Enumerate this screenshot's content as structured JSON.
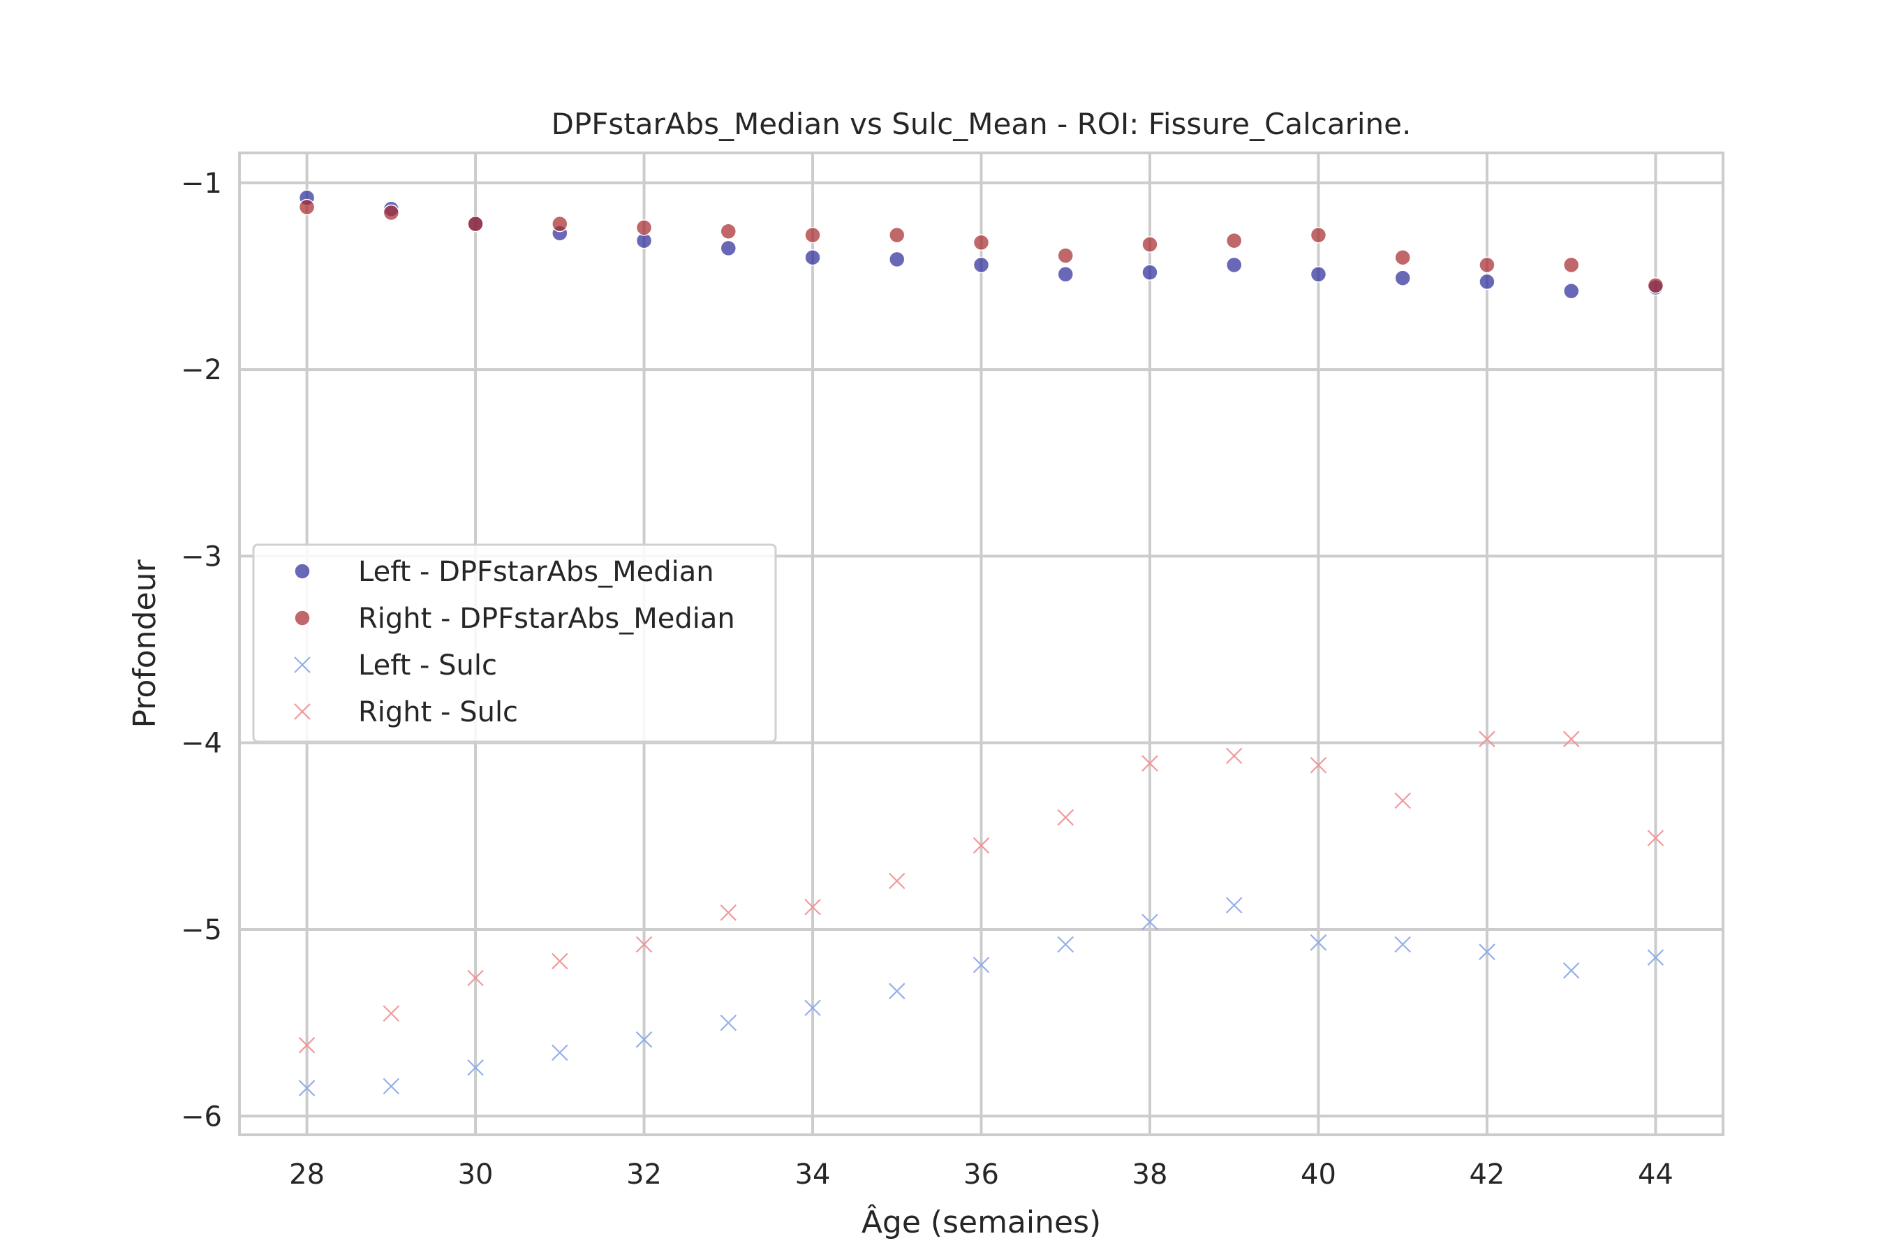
{
  "chart_data": {
    "type": "scatter",
    "title": "DPFstarAbs_Median vs Sulc_Mean - ROI: Fissure_Calcarine.",
    "xlabel": "Âge (semaines)",
    "ylabel": "Profondeur",
    "xlim": [
      27.2,
      44.8
    ],
    "ylim": [
      -6.1,
      -0.84
    ],
    "xticks": [
      28,
      30,
      32,
      34,
      36,
      38,
      40,
      42,
      44
    ],
    "xtick_labels": [
      "28",
      "30",
      "32",
      "34",
      "36",
      "38",
      "40",
      "42",
      "44"
    ],
    "yticks": [
      -1,
      -2,
      -3,
      -4,
      -5,
      -6
    ],
    "ytick_labels": [
      "−1",
      "−2",
      "−3",
      "−4",
      "−5",
      "−6"
    ],
    "grid": true,
    "legend_position": "center-left",
    "x": [
      28,
      29,
      30,
      31,
      32,
      33,
      34,
      35,
      36,
      37,
      38,
      39,
      40,
      41,
      42,
      43,
      44
    ],
    "series": [
      {
        "name": "Left - DPFstarAbs_Median",
        "marker": "circle",
        "color": "#2e2e9a",
        "values": [
          -1.08,
          -1.14,
          -1.22,
          -1.27,
          -1.31,
          -1.35,
          -1.4,
          -1.41,
          -1.44,
          -1.49,
          -1.48,
          -1.44,
          -1.49,
          -1.51,
          -1.53,
          -1.58,
          -1.56
        ]
      },
      {
        "name": "Right - DPFstarAbs_Median",
        "marker": "circle",
        "color": "#a82c30",
        "values": [
          -1.13,
          -1.16,
          -1.22,
          -1.22,
          -1.24,
          -1.26,
          -1.28,
          -1.28,
          -1.32,
          -1.39,
          -1.33,
          -1.31,
          -1.28,
          -1.4,
          -1.44,
          -1.44,
          -1.55
        ]
      },
      {
        "name": "Left - Sulc",
        "marker": "x",
        "color": "#8aa6e8",
        "values": [
          -5.85,
          -5.84,
          -5.74,
          -5.66,
          -5.59,
          -5.5,
          -5.42,
          -5.33,
          -5.19,
          -5.08,
          -4.96,
          -4.87,
          -5.07,
          -5.08,
          -5.12,
          -5.22,
          -5.15
        ]
      },
      {
        "name": "Right - Sulc",
        "marker": "x",
        "color": "#ee8f90",
        "values": [
          -5.62,
          -5.45,
          -5.26,
          -5.17,
          -5.08,
          -4.91,
          -4.88,
          -4.74,
          -4.55,
          -4.4,
          -4.11,
          -4.07,
          -4.12,
          -4.31,
          -3.98,
          -3.98,
          -4.51
        ]
      }
    ]
  }
}
